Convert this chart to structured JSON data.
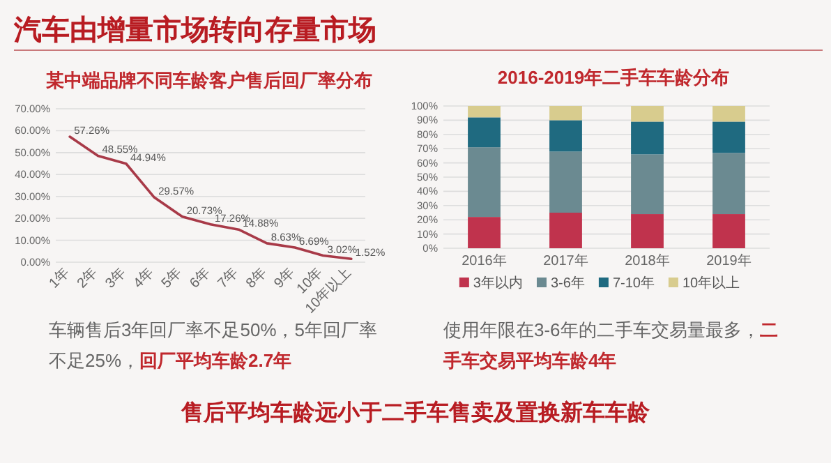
{
  "chart_data": [
    {
      "type": "line",
      "title": "某中端品牌不同车龄客户售后回厂率分布",
      "categories": [
        "1年",
        "2年",
        "3年",
        "4年",
        "5年",
        "6年",
        "7年",
        "8年",
        "9年",
        "10年",
        "10年以上"
      ],
      "values": [
        57.26,
        48.55,
        44.94,
        29.57,
        20.73,
        17.26,
        14.88,
        8.63,
        6.69,
        3.02,
        1.52
      ],
      "value_labels": [
        "57.26%",
        "48.55%",
        "44.94%",
        "29.57%",
        "20.73%",
        "17.26%",
        "14.88%",
        "8.63%",
        "6.69%",
        "3.02%",
        "1.52%"
      ],
      "color": "#a83a48",
      "ylim": [
        0,
        70
      ],
      "yticks": [
        {
          "value": 0,
          "label": "0.00%"
        },
        {
          "value": 10,
          "label": "10.00%"
        },
        {
          "value": 20,
          "label": "20.00%"
        },
        {
          "value": 30,
          "label": "30.00%"
        },
        {
          "value": 40,
          "label": "40.00%"
        },
        {
          "value": 50,
          "label": "50.00%"
        },
        {
          "value": 60,
          "label": "60.00%"
        },
        {
          "value": 70,
          "label": "70.00%"
        }
      ],
      "grid": "y",
      "marker": "none",
      "line_style": "solid",
      "legend": false,
      "annotations": [
        "汽车由增量市场转向存量市场",
        "车辆售后3年回厂率不足50%，5年回厂率不足25%，",
        "回厂平均车龄2.7年"
      ]
    },
    {
      "type": "bar",
      "stacked": true,
      "title": "2016-2019年二手车车龄分布",
      "categories": [
        "2016年",
        "2017年",
        "2018年",
        "2019年"
      ],
      "series": [
        {
          "name": "3年以内",
          "color": "#c0334d",
          "values": [
            22,
            25,
            24,
            24
          ]
        },
        {
          "name": "3-6年",
          "color": "#6b8a91",
          "values": [
            49,
            43,
            42,
            43
          ]
        },
        {
          "name": "7-10年",
          "color": "#1f6a80",
          "values": [
            21,
            22,
            23,
            22
          ]
        },
        {
          "name": "10年以上",
          "color": "#d8cc8e",
          "values": [
            8,
            10,
            11,
            11
          ]
        }
      ],
      "ylim": [
        0,
        100
      ],
      "yticks": [
        {
          "value": 0,
          "label": "0%"
        },
        {
          "value": 10,
          "label": "10%"
        },
        {
          "value": 20,
          "label": "20%"
        },
        {
          "value": 30,
          "label": "30%"
        },
        {
          "value": 40,
          "label": "40%"
        },
        {
          "value": 50,
          "label": "50%"
        },
        {
          "value": 60,
          "label": "60%"
        },
        {
          "value": 70,
          "label": "70%"
        },
        {
          "value": 80,
          "label": "80%"
        },
        {
          "value": 90,
          "label": "90%"
        },
        {
          "value": 100,
          "label": "100%"
        }
      ],
      "grid": "y",
      "legend": "bottom",
      "annotations": [
        "使用年限在3-6年的二手车交易量最多，",
        "二手车交易平均车龄4年",
        "售后平均车龄远小于二手车售卖及置换新车车龄"
      ]
    }
  ]
}
